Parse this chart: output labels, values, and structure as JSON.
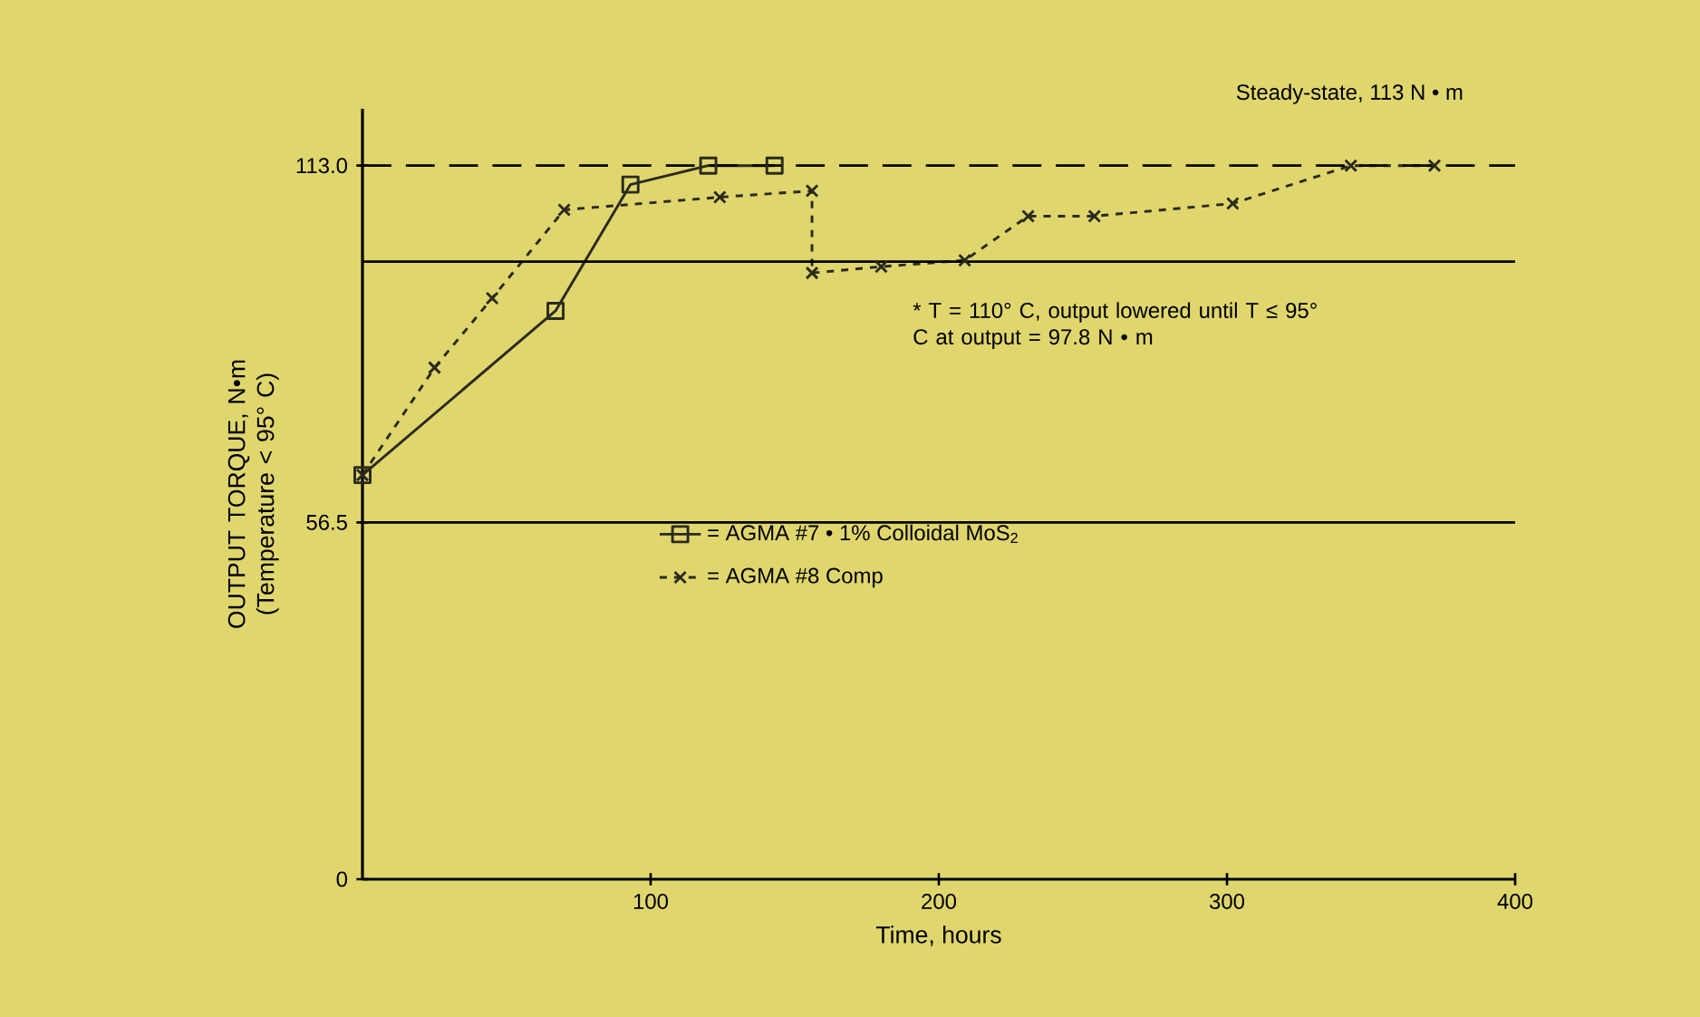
{
  "chart_data": {
    "type": "line",
    "xlabel": "Time, hours",
    "ylabel": "OUTPUT TORQUE, N•m (Temperature < 95° C)",
    "xlim": [
      0,
      400
    ],
    "xticks": [
      100,
      200,
      300,
      400
    ],
    "ylim": [
      0,
      122
    ],
    "yticks": [
      0,
      56.5,
      {
        "value": 113,
        "label": "113.0"
      }
    ],
    "series": [
      {
        "name": "= AGMA #7  •  1% Colloidal MoS$_{2}$",
        "color": "#2a2a1c",
        "marker": "square",
        "line_style": "solid",
        "x": [
          0,
          67,
          93,
          120,
          143
        ],
        "values": [
          64,
          90,
          110,
          113,
          113
        ]
      },
      {
        "name": "= AGMA #8 Comp",
        "color": "#2a2a1c",
        "marker": "cross",
        "line_style": "dashed",
        "x": [
          0,
          25,
          45,
          70,
          124,
          156,
          156,
          180,
          209,
          231,
          254,
          302,
          343,
          372
        ],
        "values": [
          64,
          81,
          92,
          106,
          108,
          109,
          96,
          97,
          98,
          105,
          105,
          107,
          113,
          113
        ]
      }
    ],
    "ref_lines": [
      {
        "axis": "y",
        "value": 113,
        "label": "Steady-state, 113 N • m",
        "line_style": "dashed"
      },
      {
        "axis": "y",
        "value": 97.8,
        "line_style": "solid"
      },
      {
        "axis": "y",
        "value": 56.5,
        "line_style": "solid"
      }
    ],
    "annotations": [
      "* T = 110° C, output lowered until T ≤ 95° C at output = 97.8 N • m"
    ],
    "legend": "center",
    "grid": false
  }
}
